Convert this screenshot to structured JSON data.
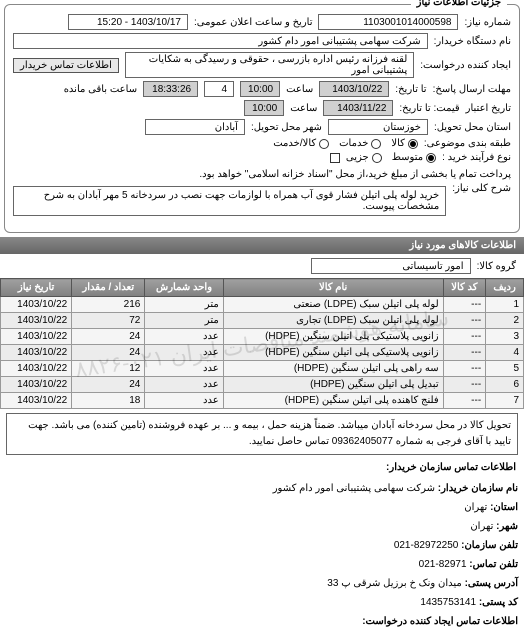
{
  "panel_title": "جزئیات اطلاعات نیاز",
  "header": {
    "need_no_label": "شماره نیاز:",
    "need_no": "1103001014000598",
    "announce_label": "تاریخ و ساعت اعلان عمومی:",
    "announce_value": "1403/10/17 - 15:20",
    "buyer_org_label": "نام دستگاه خریدار:",
    "buyer_org": "شرکت سهامی پشتیبانی امور دام کشور",
    "requester_label": "ایجاد کننده درخواست:",
    "requester": "لقنه فرزانه رئیس اداره بازرسی ، حقوقی و رسیدگی به شکایات  پشتیبانی امور",
    "buyer_contact_btn": "اطلاعات تماس خریدار",
    "deadline_send_label": "مهلت ارسال پاسخ:",
    "deadline_until_label": "تا تاریخ:",
    "deadline_date": "1403/10/22",
    "time_label": "ساعت",
    "deadline_time": "10:00",
    "small_field": "4",
    "remain_label": "ساعت باقی مانده",
    "remain_value": "18:33:26",
    "credit_label": "تاریخ اعتبار",
    "price_until_label": "قیمت: تا تاریخ:",
    "price_date": "1403/11/22",
    "price_time": "10:00",
    "deliver_province_label": "استان محل تحویل:",
    "deliver_province": "خوزستان",
    "deliver_city_label": "شهر محل تحویل:",
    "deliver_city": "آبادان",
    "class_label": "طبقه بندی موضوعی:",
    "opt_goods": "کالا",
    "opt_services": "خدمات",
    "opt_both": "کالا/خدمت",
    "buytype_label": "نوع فرآیند خرید :",
    "opt_medium": "متوسط",
    "opt_small": "جزیی",
    "buytype_note": "پرداخت تمام یا بخشی از مبلغ خرید،از محل \"اسناد خزانه اسلامی\" خواهد بود.",
    "summary_label": "شرح کلی نیاز:",
    "summary": "خرید لوله پلی اتیلن فشار قوی آب همراه با لوازمات جهت نصب در سردخانه 5 مهر آبادان به شرح مشخصات پیوست."
  },
  "goods_header": "اطلاعات کالاهای مورد نیاز",
  "group_label": "گروه کالا:",
  "group_value": "امور تاسیساتی",
  "columns": [
    "ردیف",
    "کد کالا",
    "نام کالا",
    "واحد شمارش",
    "تعداد / مقدار",
    "تاریخ نیاز"
  ],
  "rows": [
    [
      "1",
      "---",
      "لوله پلی اتیلن سبک (LDPE) صنعتی",
      "متر",
      "216",
      "1403/10/22"
    ],
    [
      "2",
      "---",
      "لوله پلی اتیلن سبک (LDPE) تجاری",
      "متر",
      "72",
      "1403/10/22"
    ],
    [
      "3",
      "---",
      "زانویی پلاستیکی پلی اتیلن سنگین (HDPE)",
      "عدد",
      "24",
      "1403/10/22"
    ],
    [
      "4",
      "---",
      "زانویی پلاستیکی پلی اتیلن سنگین (HDPE)",
      "عدد",
      "24",
      "1403/10/22"
    ],
    [
      "5",
      "---",
      "سه راهی پلی اتیلن سنگین (HDPE)",
      "عدد",
      "12",
      "1403/10/22"
    ],
    [
      "6",
      "---",
      "تبدیل پلی اتیلن سنگین (HDPE)",
      "عدد",
      "24",
      "1403/10/22"
    ],
    [
      "7",
      "---",
      "فلنج کاهنده پلی اتیلن سنگین (HDPE)",
      "عدد",
      "18",
      "1403/10/22"
    ]
  ],
  "watermark": "سامانه هوشمند مناقصات ایران\n۰۲۱-۸۸۲۶",
  "description": "تحویل کالا در محل سردخانه آبادان میباشد. ضمناً هزینه حمل ، بیمه و ... بر عهده فروشنده (تامین کننده) می باشد. جهت تایید با آقای فرجی به شماره 09362405077 تماس حاصل نمایید.",
  "contact_header": "اطلاعات تماس سازمان خریدار:",
  "contact": {
    "org_label": "نام سازمان خریدار:",
    "org": "شرکت سهامی پشتیبانی امور دام کشور",
    "province_label": "استان:",
    "province": "تهران",
    "city_label": "شهر:",
    "city": "تهران",
    "phone_label": "تلفن سازمان:",
    "phone": "82972250-021",
    "fax_label": "تلفن تماس:",
    "fax": "82971-021",
    "addr_label": "آدرس پستی:",
    "addr": "میدان ونک خ برزیل شرقی پ 33",
    "post_label": "کد پستی:",
    "post": "1435753141",
    "creator_label": "اطلاعات تماس ایجاد کننده درخواست:"
  },
  "colors": {
    "border": "#888888",
    "header_grad_start": "#a0a0a0",
    "header_grad_end": "#808080"
  }
}
